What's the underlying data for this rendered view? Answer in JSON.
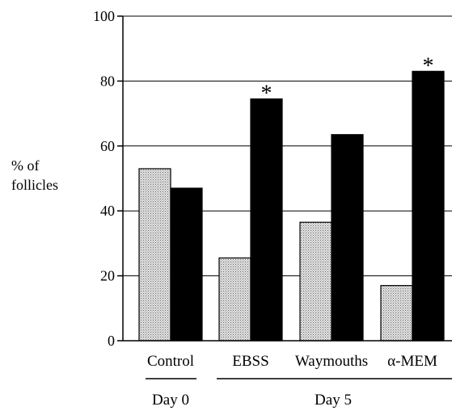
{
  "chart_data": {
    "type": "bar",
    "ylabel_lines": [
      "% of",
      "follicles"
    ],
    "ylim": [
      0,
      100
    ],
    "yticks": [
      0,
      20,
      40,
      60,
      80,
      100
    ],
    "grid": true,
    "categories": [
      "Control",
      "EBSS",
      "Waymouths",
      "α-MEM"
    ],
    "groups": [
      {
        "label": "Day 0",
        "categories": [
          "Control"
        ]
      },
      {
        "label": "Day 5",
        "categories": [
          "EBSS",
          "Waymouths",
          "α-MEM"
        ]
      }
    ],
    "series": [
      {
        "fill": "stippled-gray",
        "color": "#c8c8c8",
        "values": [
          53,
          25.5,
          36.5,
          17
        ]
      },
      {
        "fill": "solid-black",
        "color": "#000000",
        "values": [
          47,
          74.5,
          63.5,
          83
        ]
      }
    ],
    "annotations": [
      {
        "text": "*",
        "category": "EBSS",
        "series_index": 1
      },
      {
        "text": "*",
        "category": "α-MEM",
        "series_index": 1
      }
    ]
  }
}
